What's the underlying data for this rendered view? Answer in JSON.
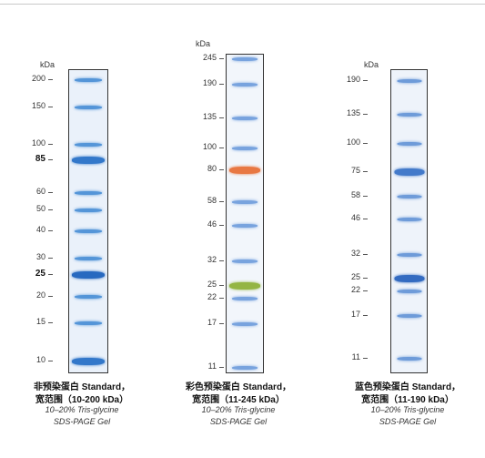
{
  "panels": [
    {
      "id": "left",
      "unit_label": "kDa",
      "markers": [
        {
          "label": "200",
          "mw": 200,
          "bold": false
        },
        {
          "label": "150",
          "mw": 150,
          "bold": false
        },
        {
          "label": "100",
          "mw": 100,
          "bold": false
        },
        {
          "label": "85",
          "mw": 85,
          "bold": true
        },
        {
          "label": "60",
          "mw": 60,
          "bold": false
        },
        {
          "label": "50",
          "mw": 50,
          "bold": false
        },
        {
          "label": "40",
          "mw": 40,
          "bold": false
        },
        {
          "label": "30",
          "mw": 30,
          "bold": false
        },
        {
          "label": "25",
          "mw": 25,
          "bold": true
        },
        {
          "label": "20",
          "mw": 20,
          "bold": false
        },
        {
          "label": "15",
          "mw": 15,
          "bold": false
        },
        {
          "label": "10",
          "mw": 10,
          "bold": false
        }
      ],
      "band_color": "#2f7fd0",
      "gel_color": "#eaf1fa",
      "highlights": {
        "85": "#2a72c8",
        "25": "#1e62bd",
        "10": "#2a72c8"
      },
      "caption_line1": "非预染蛋白 Standard，",
      "caption_line2": "宽范围（10-200 kDa）",
      "caption_line3": "10–20% Tris-glycine",
      "caption_line4": "SDS-PAGE Gel"
    },
    {
      "id": "middle",
      "unit_label": "kDa",
      "markers": [
        {
          "label": "245",
          "mw": 245,
          "bold": false
        },
        {
          "label": "190",
          "mw": 190,
          "bold": false
        },
        {
          "label": "135",
          "mw": 135,
          "bold": false
        },
        {
          "label": "100",
          "mw": 100,
          "bold": false
        },
        {
          "label": "80",
          "mw": 80,
          "bold": false
        },
        {
          "label": "58",
          "mw": 58,
          "bold": false
        },
        {
          "label": "46",
          "mw": 46,
          "bold": false
        },
        {
          "label": "32",
          "mw": 32,
          "bold": false
        },
        {
          "label": "25",
          "mw": 25,
          "bold": false
        },
        {
          "label": "22",
          "mw": 22,
          "bold": false
        },
        {
          "label": "17",
          "mw": 17,
          "bold": false
        },
        {
          "label": "11",
          "mw": 11,
          "bold": false
        }
      ],
      "band_color": "#5a8fd8",
      "gel_color": "#f2f6fb",
      "highlights": {
        "80": "#e8723a",
        "25": "#8fb23a"
      },
      "caption_line1": "彩色预染蛋白 Standard，",
      "caption_line2": "宽范围（11-245 kDa）",
      "caption_line3": "10–20% Tris-glycine",
      "caption_line4": "SDS-PAGE Gel"
    },
    {
      "id": "right",
      "unit_label": "kDa",
      "markers": [
        {
          "label": "190",
          "mw": 190,
          "bold": false
        },
        {
          "label": "135",
          "mw": 135,
          "bold": false
        },
        {
          "label": "100",
          "mw": 100,
          "bold": false
        },
        {
          "label": "75",
          "mw": 75,
          "bold": false
        },
        {
          "label": "58",
          "mw": 58,
          "bold": false
        },
        {
          "label": "46",
          "mw": 46,
          "bold": false
        },
        {
          "label": "32",
          "mw": 32,
          "bold": false
        },
        {
          "label": "25",
          "mw": 25,
          "bold": false
        },
        {
          "label": "22",
          "mw": 22,
          "bold": false
        },
        {
          "label": "17",
          "mw": 17,
          "bold": false
        },
        {
          "label": "11",
          "mw": 11,
          "bold": false
        }
      ],
      "band_color": "#4f86d2",
      "gel_color": "#eef3fa",
      "highlights": {
        "75": "#3a74c8",
        "25": "#2a64be"
      },
      "caption_line1": "蓝色预染蛋白 Standard，",
      "caption_line2": "宽范围（11-190 kDa）",
      "caption_line3": "10–20% Tris-glycine",
      "caption_line4": "SDS-PAGE Gel"
    }
  ]
}
